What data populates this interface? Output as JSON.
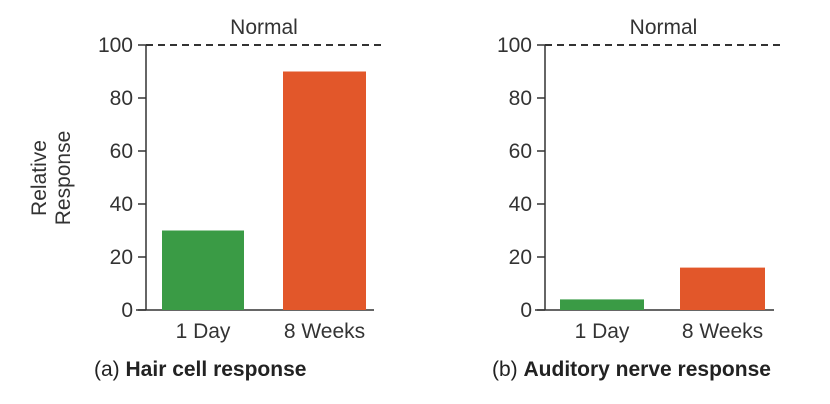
{
  "y_axis_label": [
    "Relative",
    "Response"
  ],
  "reference_line_label": "Normal",
  "reference_value": 100,
  "colors": {
    "day1": "#3a9b45",
    "week8": "#e2572a",
    "axis": "#333333"
  },
  "chart_data": [
    {
      "type": "bar",
      "caption_prefix": "(a)",
      "title": "Hair cell response",
      "categories": [
        "1 Day",
        "8 Weeks"
      ],
      "values": [
        30,
        90
      ],
      "ylim": [
        0,
        100
      ],
      "yticks": [
        0,
        20,
        40,
        60,
        80,
        100
      ],
      "ylabel": "Relative Response",
      "reference_line": {
        "value": 100,
        "label": "Normal",
        "style": "dashed"
      }
    },
    {
      "type": "bar",
      "caption_prefix": "(b)",
      "title": "Auditory nerve response",
      "categories": [
        "1 Day",
        "8 Weeks"
      ],
      "values": [
        4,
        16
      ],
      "ylim": [
        0,
        100
      ],
      "yticks": [
        0,
        20,
        40,
        60,
        80,
        100
      ],
      "ylabel": "",
      "reference_line": {
        "value": 100,
        "label": "Normal",
        "style": "dashed"
      }
    }
  ]
}
